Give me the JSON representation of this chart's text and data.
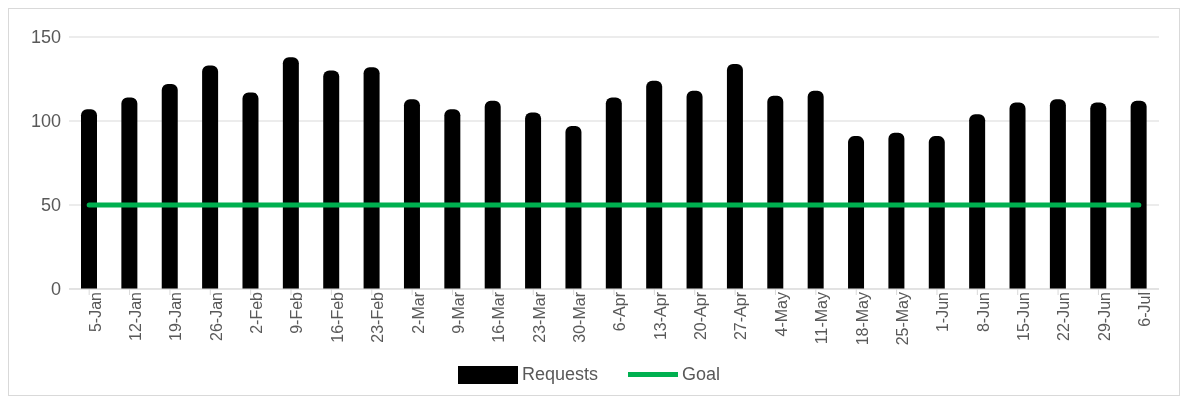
{
  "chart_data": {
    "type": "bar",
    "categories": [
      "5-Jan",
      "12-Jan",
      "19-Jan",
      "26-Jan",
      "2-Feb",
      "9-Feb",
      "16-Feb",
      "23-Feb",
      "2-Mar",
      "9-Mar",
      "16-Mar",
      "23-Mar",
      "30-Mar",
      "6-Apr",
      "13-Apr",
      "20-Apr",
      "27-Apr",
      "4-May",
      "11-May",
      "18-May",
      "25-May",
      "1-Jun",
      "8-Jun",
      "15-Jun",
      "22-Jun",
      "29-Jun",
      "6-Jul"
    ],
    "series": [
      {
        "name": "Requests",
        "color": "#000000",
        "values": [
          107,
          114,
          122,
          133,
          117,
          138,
          130,
          132,
          113,
          107,
          112,
          105,
          97,
          114,
          124,
          118,
          134,
          115,
          118,
          91,
          93,
          91,
          104,
          111,
          113,
          111,
          112
        ]
      },
      {
        "name": "Goal",
        "type": "line",
        "color": "#00b050",
        "marker": "none",
        "values": [
          50,
          50,
          50,
          50,
          50,
          50,
          50,
          50,
          50,
          50,
          50,
          50,
          50,
          50,
          50,
          50,
          50,
          50,
          50,
          50,
          50,
          50,
          50,
          50,
          50,
          50,
          50
        ]
      }
    ],
    "ylim": [
      0,
      150
    ],
    "yticks": [
      0,
      50,
      100,
      150
    ],
    "grid": "y",
    "legend": "bottom"
  }
}
